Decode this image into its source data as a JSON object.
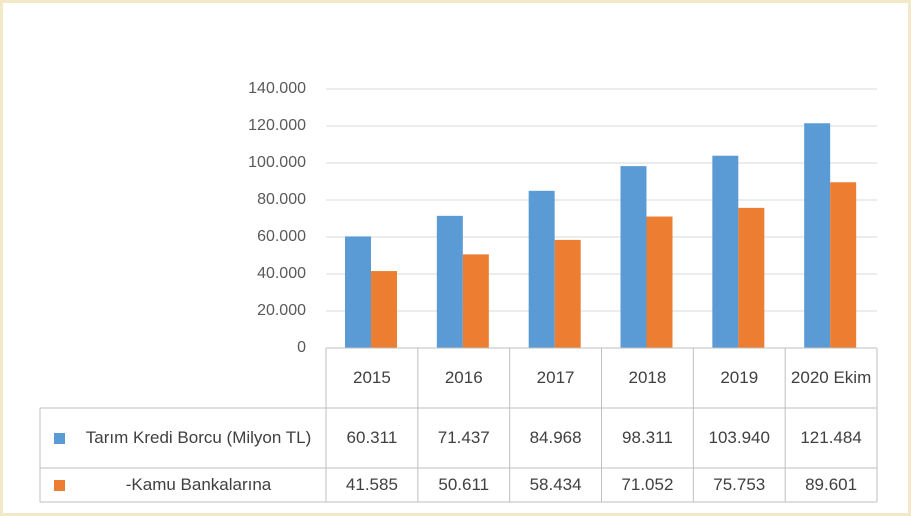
{
  "chart_data": {
    "type": "bar",
    "categories": [
      "2015",
      "2016",
      "2017",
      "2018",
      "2019",
      "2020 Ekim"
    ],
    "series": [
      {
        "name": "Tarım Kredi Borcu  (Milyon TL)",
        "color": "#5b9bd5",
        "values": [
          60311,
          71437,
          84968,
          98311,
          103940,
          121484
        ],
        "value_labels": [
          "60.311",
          "71.437",
          "84.968",
          "98.311",
          "103.940",
          "121.484"
        ]
      },
      {
        "name": "-Kamu Bankalarına",
        "color": "#ed7d31",
        "values": [
          41585,
          50611,
          58434,
          71052,
          75753,
          89601
        ],
        "value_labels": [
          "41.585",
          "50.611",
          "58.434",
          "71.052",
          "75.753",
          "89.601"
        ]
      }
    ],
    "ylim": [
      0,
      140000
    ],
    "yticks": [
      0,
      {
        "value": 20000,
        "label": "20.000"
      },
      {
        "value": 40000,
        "label": "40.000"
      },
      {
        "value": 60000,
        "label": "60.000"
      },
      {
        "value": 80000,
        "label": "80.000"
      },
      {
        "value": 100000,
        "label": "100.000"
      },
      {
        "value": 120000,
        "label": "120.000"
      },
      {
        "value": 140000,
        "label": "140.000"
      }
    ],
    "grid": true
  }
}
